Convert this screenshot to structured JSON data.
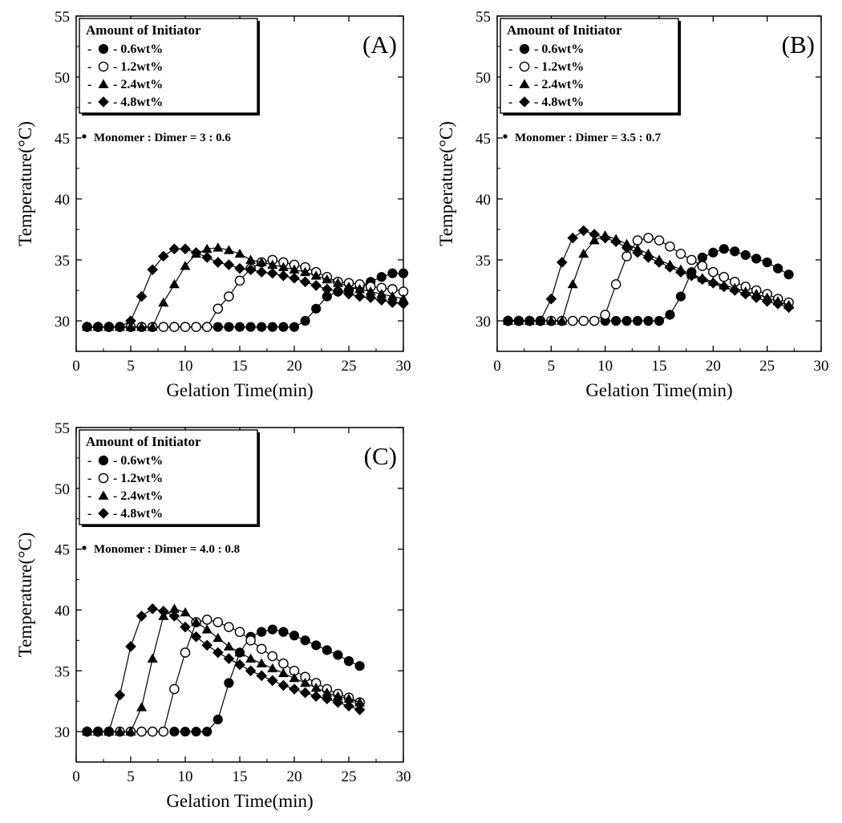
{
  "chart_data": [
    {
      "type": "line",
      "panel_label": "(A)",
      "xlabel": "Gelation Time(min)",
      "ylabel": "Temperature(°C)",
      "xlim": [
        0,
        30
      ],
      "ylim": [
        27.5,
        55
      ],
      "xticks": [
        0,
        5,
        10,
        15,
        20,
        25,
        30
      ],
      "yticks": [
        30,
        35,
        40,
        45,
        50,
        55
      ],
      "legend_title": "Amount of Initiator",
      "legend_placement": "top-left",
      "annotation": "Monomer : Dimer = 3 : 0.6",
      "series": [
        {
          "name": "0.6wt%",
          "marker": "circle-filled",
          "x": [
            1,
            2,
            3,
            4,
            5,
            6,
            7,
            8,
            9,
            10,
            11,
            12,
            13,
            14,
            15,
            16,
            17,
            18,
            19,
            20,
            21,
            22,
            23,
            24,
            25,
            26,
            27,
            28,
            29,
            30
          ],
          "y": [
            29.5,
            29.5,
            29.5,
            29.5,
            29.5,
            29.5,
            29.5,
            29.5,
            29.5,
            29.5,
            29.5,
            29.5,
            29.5,
            29.5,
            29.5,
            29.5,
            29.5,
            29.5,
            29.5,
            29.5,
            30.0,
            31.0,
            32.0,
            32.4,
            32.5,
            32.8,
            33.2,
            33.6,
            33.9,
            33.9
          ]
        },
        {
          "name": "1.2wt%",
          "marker": "circle-open",
          "x": [
            1,
            2,
            3,
            4,
            5,
            6,
            7,
            8,
            9,
            10,
            11,
            12,
            13,
            14,
            15,
            16,
            17,
            18,
            19,
            20,
            21,
            22,
            23,
            24,
            25,
            26,
            27,
            28,
            29,
            30
          ],
          "y": [
            29.5,
            29.5,
            29.5,
            29.5,
            29.5,
            29.5,
            29.5,
            29.5,
            29.5,
            29.5,
            29.5,
            29.5,
            31.0,
            32.0,
            33.3,
            34.3,
            34.8,
            35.0,
            34.8,
            34.6,
            34.4,
            34.0,
            33.6,
            33.2,
            33.1,
            33.0,
            32.8,
            32.7,
            32.6,
            32.4
          ]
        },
        {
          "name": "2.4wt%",
          "marker": "triangle-filled",
          "x": [
            1,
            2,
            3,
            4,
            5,
            6,
            7,
            8,
            9,
            10,
            11,
            12,
            13,
            14,
            15,
            16,
            17,
            18,
            19,
            20,
            21,
            22,
            23,
            24,
            25,
            26,
            27,
            28,
            29,
            30
          ],
          "y": [
            29.5,
            29.5,
            29.5,
            29.5,
            29.5,
            29.5,
            29.5,
            31.5,
            33.0,
            34.5,
            35.5,
            35.9,
            36.0,
            35.8,
            35.5,
            35.0,
            34.8,
            34.6,
            34.4,
            34.2,
            34.0,
            33.7,
            33.4,
            33.1,
            32.8,
            32.6,
            32.4,
            32.2,
            32.0,
            31.8
          ]
        },
        {
          "name": "4.8wt%",
          "marker": "diamond-filled",
          "x": [
            1,
            2,
            3,
            4,
            5,
            6,
            7,
            8,
            9,
            10,
            11,
            12,
            13,
            14,
            15,
            16,
            17,
            18,
            19,
            20,
            21,
            22,
            23,
            24,
            25,
            26,
            27,
            28,
            29,
            30
          ],
          "y": [
            29.5,
            29.5,
            29.5,
            29.5,
            30.0,
            32.0,
            34.2,
            35.3,
            35.9,
            35.9,
            35.6,
            35.2,
            34.8,
            34.6,
            34.3,
            34.2,
            34.0,
            33.9,
            33.7,
            33.5,
            33.2,
            32.9,
            32.6,
            32.4,
            32.2,
            32.0,
            31.9,
            31.7,
            31.5,
            31.4
          ]
        }
      ]
    },
    {
      "type": "line",
      "panel_label": "(B)",
      "xlabel": "Gelation Time(min)",
      "ylabel": "Temperature(°C)",
      "xlim": [
        0,
        30
      ],
      "ylim": [
        27.5,
        55
      ],
      "xticks": [
        0,
        5,
        10,
        15,
        20,
        25,
        30
      ],
      "yticks": [
        30,
        35,
        40,
        45,
        50,
        55
      ],
      "legend_title": "Amount of Initiator",
      "legend_placement": "top-left",
      "annotation": "Monomer : Dimer = 3.5 : 0.7",
      "series": [
        {
          "name": "0.6wt%",
          "marker": "circle-filled",
          "x": [
            10,
            11,
            12,
            13,
            14,
            15,
            16,
            17,
            18,
            19,
            20,
            21,
            22,
            23,
            24,
            25,
            26,
            27
          ],
          "y": [
            30.0,
            30.0,
            30.0,
            30.0,
            30.0,
            30.0,
            30.5,
            32.0,
            34.0,
            35.2,
            35.6,
            35.9,
            35.7,
            35.4,
            35.1,
            34.8,
            34.3,
            33.8
          ]
        },
        {
          "name": "1.2wt%",
          "marker": "circle-open",
          "x": [
            1,
            2,
            3,
            4,
            5,
            6,
            7,
            8,
            9,
            10,
            11,
            12,
            13,
            14,
            15,
            16,
            17,
            18,
            19,
            20,
            21,
            22,
            23,
            24,
            25,
            26,
            27
          ],
          "y": [
            30.0,
            30.0,
            30.0,
            30.0,
            30.0,
            30.0,
            30.0,
            30.0,
            30.0,
            30.5,
            33.0,
            35.3,
            36.6,
            36.8,
            36.6,
            36.1,
            35.5,
            35.0,
            34.5,
            34.0,
            33.6,
            33.2,
            32.8,
            32.5,
            32.2,
            31.8,
            31.5
          ]
        },
        {
          "name": "2.4wt%",
          "marker": "triangle-filled",
          "x": [
            1,
            2,
            3,
            4,
            5,
            6,
            7,
            8,
            9,
            10,
            11,
            12,
            13,
            14,
            15,
            16,
            17,
            18,
            19,
            20,
            21,
            22,
            23,
            24,
            25,
            26,
            27
          ],
          "y": [
            30.0,
            30.0,
            30.0,
            30.0,
            30.0,
            30.0,
            33.0,
            35.5,
            36.6,
            37.0,
            36.7,
            36.3,
            35.9,
            35.5,
            35.0,
            34.6,
            34.2,
            33.8,
            33.5,
            33.2,
            32.9,
            32.7,
            32.4,
            32.2,
            31.9,
            31.6,
            31.3
          ]
        },
        {
          "name": "4.8wt%",
          "marker": "diamond-filled",
          "x": [
            1,
            2,
            3,
            4,
            5,
            6,
            7,
            8,
            9,
            10,
            11,
            12,
            13,
            14,
            15,
            16,
            17,
            18,
            19,
            20,
            21,
            22,
            23,
            24,
            25,
            26,
            27
          ],
          "y": [
            30.0,
            30.0,
            30.0,
            30.0,
            31.8,
            34.8,
            36.8,
            37.4,
            37.1,
            36.8,
            36.5,
            36.0,
            35.6,
            35.2,
            34.8,
            34.4,
            34.0,
            33.7,
            33.4,
            33.1,
            32.8,
            32.5,
            32.2,
            31.9,
            31.6,
            31.4,
            31.1
          ]
        }
      ]
    },
    {
      "type": "line",
      "panel_label": "(C)",
      "xlabel": "Gelation Time(min)",
      "ylabel": "Temperature(°C)",
      "xlim": [
        0,
        30
      ],
      "ylim": [
        27.5,
        55
      ],
      "xticks": [
        0,
        5,
        10,
        15,
        20,
        25,
        30
      ],
      "yticks": [
        30,
        35,
        40,
        45,
        50,
        55
      ],
      "legend_title": "Amount of Initiator",
      "legend_placement": "top-left",
      "annotation": "Monomer : Dimer = 4.0 : 0.8",
      "series": [
        {
          "name": "0.6wt%",
          "marker": "circle-filled",
          "x": [
            9,
            10,
            11,
            12,
            13,
            14,
            15,
            16,
            17,
            18,
            19,
            20,
            21,
            22,
            23,
            24,
            25,
            26
          ],
          "y": [
            30.0,
            30.0,
            30.0,
            30.0,
            31.0,
            34.0,
            36.5,
            37.8,
            38.2,
            38.4,
            38.2,
            37.9,
            37.5,
            37.1,
            36.7,
            36.3,
            35.8,
            35.4
          ]
        },
        {
          "name": "1.2wt%",
          "marker": "circle-open",
          "x": [
            1,
            2,
            3,
            4,
            5,
            6,
            7,
            8,
            9,
            10,
            11,
            12,
            13,
            14,
            15,
            16,
            17,
            18,
            19,
            20,
            21,
            22,
            23,
            24,
            25,
            26
          ],
          "y": [
            30.0,
            30.0,
            30.0,
            30.0,
            30.0,
            30.0,
            30.0,
            30.0,
            33.5,
            36.5,
            39.0,
            39.2,
            39.0,
            38.6,
            38.2,
            37.5,
            36.8,
            36.2,
            35.6,
            35.0,
            34.5,
            34.0,
            33.5,
            33.1,
            32.8,
            32.4
          ]
        },
        {
          "name": "2.4wt%",
          "marker": "triangle-filled",
          "x": [
            1,
            2,
            3,
            4,
            5,
            6,
            7,
            8,
            9,
            10,
            11,
            12,
            13,
            14,
            15,
            16,
            17,
            18,
            19,
            20,
            21,
            22,
            23,
            24,
            25,
            26
          ],
          "y": [
            30.0,
            30.0,
            30.0,
            30.0,
            30.0,
            32.0,
            36.0,
            39.5,
            40.1,
            39.8,
            39.0,
            38.4,
            37.7,
            37.0,
            36.5,
            36.0,
            35.6,
            35.2,
            34.8,
            34.4,
            34.0,
            33.6,
            33.2,
            32.9,
            32.7,
            32.4
          ]
        },
        {
          "name": "4.8wt%",
          "marker": "diamond-filled",
          "x": [
            1,
            2,
            3,
            4,
            5,
            6,
            7,
            8,
            9,
            10,
            11,
            12,
            13,
            14,
            15,
            16,
            17,
            18,
            19,
            20,
            21,
            22,
            23,
            24,
            25,
            26
          ],
          "y": [
            30.0,
            30.0,
            30.0,
            33.0,
            37.0,
            39.5,
            40.1,
            39.9,
            39.5,
            38.6,
            37.8,
            37.1,
            36.5,
            36.0,
            35.5,
            35.0,
            34.6,
            34.2,
            33.8,
            33.5,
            33.2,
            32.9,
            32.7,
            32.4,
            32.1,
            31.8
          ]
        }
      ]
    }
  ]
}
